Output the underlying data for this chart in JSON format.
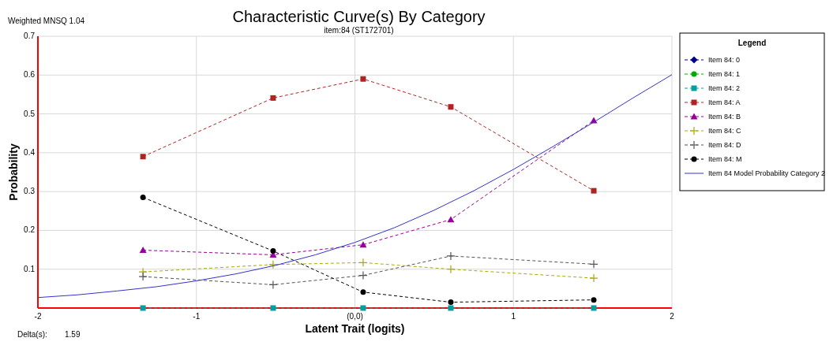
{
  "chart_data": {
    "type": "line",
    "title": "Characteristic Curve(s) By Category",
    "subtitle": "item:84 (ST172701)",
    "xlabel": "Latent Trait (logits)",
    "ylabel": "Probability",
    "legend_title": "Legend",
    "annotations": [
      "Weighted MNSQ   1.04",
      "Delta(s):        1.59"
    ],
    "x": [
      -1.337,
      -0.516,
      0.052,
      0.605,
      1.507
    ],
    "series": [
      {
        "name": "Item 84: 0",
        "color": "#00008b",
        "marker": "diamond",
        "line_style": "dashed",
        "values": [
          null,
          null,
          null,
          null,
          null
        ]
      },
      {
        "name": "Item 84: 1",
        "color": "#00aa00",
        "marker": "circle",
        "line_style": "dashed",
        "values": [
          null,
          null,
          null,
          null,
          null
        ]
      },
      {
        "name": "Item 84: 2",
        "color": "#00a0a0",
        "marker": "square",
        "line_style": "dashed",
        "values": [
          0,
          0,
          0,
          0,
          0
        ]
      },
      {
        "name": "Item 84: A",
        "color": "#b22222",
        "marker": "square",
        "line_style": "dashed",
        "values": [
          0.39,
          0.541,
          0.59,
          0.518,
          0.302
        ]
      },
      {
        "name": "Item 84: B",
        "color": "#990099",
        "marker": "triangle",
        "line_style": "dashed",
        "values": [
          0.149,
          0.137,
          0.163,
          0.228,
          0.483
        ]
      },
      {
        "name": "Item 84: C",
        "color": "#aaaa00",
        "marker": "cross",
        "line_style": "dashed",
        "values": [
          0.093,
          0.112,
          0.117,
          0.1,
          0.077
        ]
      },
      {
        "name": "Item 84: D",
        "color": "#555555",
        "marker": "cross",
        "line_style": "dashed",
        "values": [
          0.081,
          0.06,
          0.084,
          0.134,
          0.113
        ]
      },
      {
        "name": "Item 84: M",
        "color": "#000000",
        "marker": "circle",
        "line_style": "dashed",
        "values": [
          0.285,
          0.147,
          0.041,
          0.015,
          0.021
        ]
      },
      {
        "name": "Item 84 Model Probability Category 2",
        "color": "#3333cc",
        "marker": "none",
        "line_style": "solid",
        "x": [
          -2,
          -1.75,
          -1.5,
          -1.25,
          -1,
          -0.75,
          -0.5,
          -0.25,
          0,
          0.25,
          0.5,
          0.75,
          1,
          1.25,
          1.5,
          1.75,
          2
        ],
        "values": [
          0.027,
          0.034,
          0.044,
          0.055,
          0.07,
          0.088,
          0.11,
          0.137,
          0.169,
          0.207,
          0.252,
          0.302,
          0.357,
          0.416,
          0.477,
          0.54,
          0.601
        ]
      }
    ],
    "xlim": [
      -2,
      2
    ],
    "xticks": [
      -2,
      -1,
      {
        "value": 0,
        "label": "(0,0)"
      },
      1,
      2
    ],
    "ylim": [
      0,
      0.7
    ],
    "yticks": [
      0.1,
      0.2,
      0.3,
      0.4,
      0.5,
      0.6,
      0.7
    ],
    "grid": true,
    "legend": "right"
  }
}
